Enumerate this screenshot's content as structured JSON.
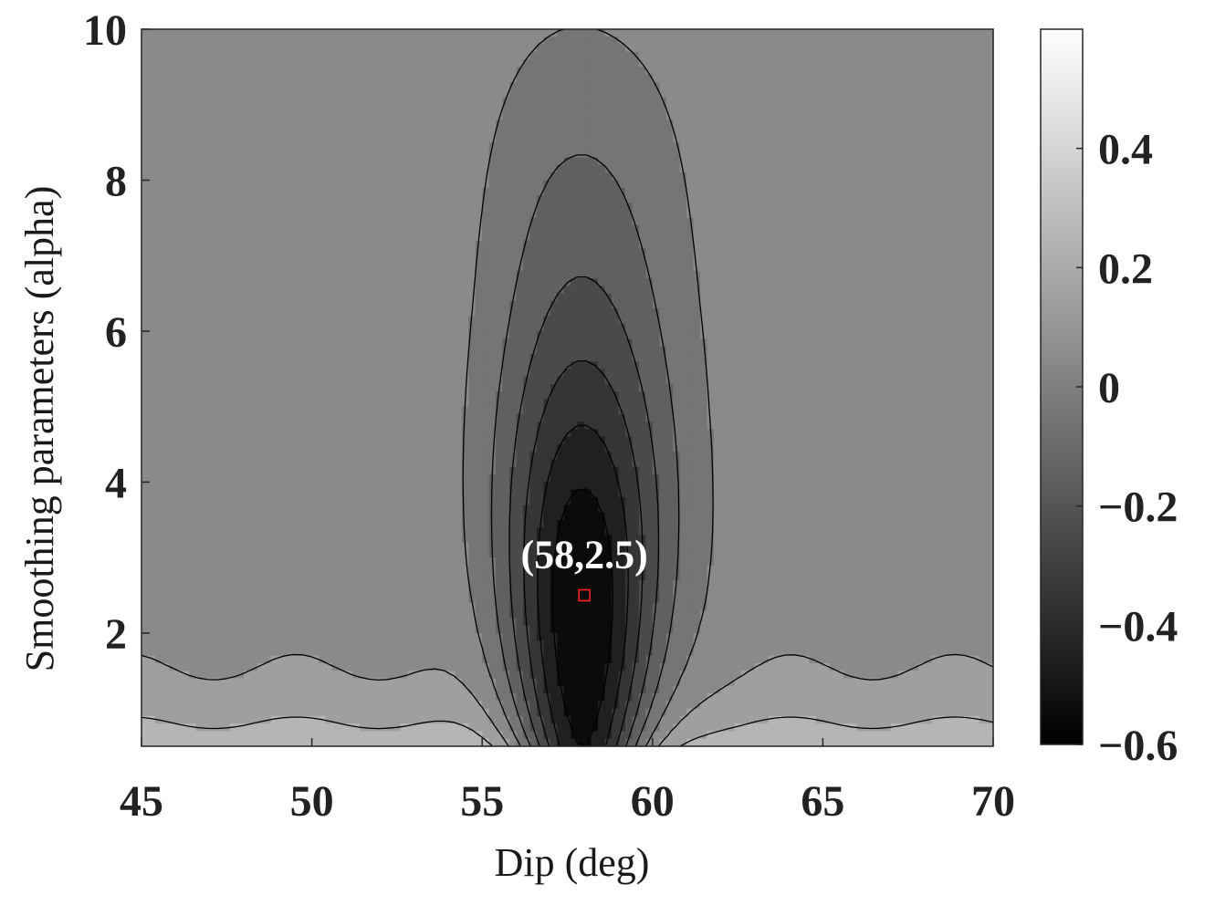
{
  "chart_data": {
    "type": "contour",
    "title": "",
    "xlabel": "Dip (deg)",
    "ylabel": "Smoothing parameters (alpha)",
    "xlim": [
      45,
      70
    ],
    "ylim": [
      0.5,
      10
    ],
    "xticks": [
      "45",
      "50",
      "55",
      "60",
      "65",
      "70"
    ],
    "yticks": [
      "2",
      "4",
      "6",
      "8",
      "10"
    ],
    "colormap": "gray",
    "colorbar": {
      "range": [
        -0.6,
        0.6
      ],
      "ticks": [
        "0.4",
        "0.2",
        "0",
        "−0.2",
        "−0.4",
        "−0.6"
      ],
      "location": "right"
    },
    "contour_levels": [
      -0.5,
      -0.4,
      -0.3,
      -0.2,
      -0.1,
      0,
      0.1,
      0.2,
      0.3,
      0.4,
      0.5
    ],
    "minimum": {
      "dip": 58,
      "alpha": 2.5,
      "label": "(58,2.5)",
      "marker_color": "#ff2020"
    },
    "grid": false
  }
}
